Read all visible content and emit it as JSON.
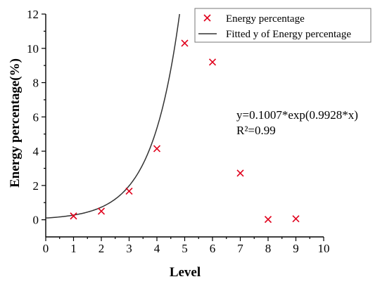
{
  "chart_data": {
    "type": "scatter",
    "xlabel": "Level",
    "ylabel": "Energy percentage(%)",
    "xlim": [
      0,
      10
    ],
    "ylim": [
      -1,
      12
    ],
    "x_ticks": [
      0,
      1,
      2,
      3,
      4,
      5,
      6,
      7,
      8,
      9,
      10
    ],
    "y_ticks": [
      0,
      2,
      4,
      6,
      8,
      10,
      12
    ],
    "grid": false,
    "legend_position": "top-right",
    "series": [
      {
        "name": "Energy percentage",
        "kind": "scatter",
        "marker": "x",
        "color": "#e0001b",
        "x": [
          1,
          2,
          3,
          4,
          5,
          6,
          7,
          8,
          9
        ],
        "y": [
          0.22,
          0.5,
          1.67,
          4.15,
          10.3,
          9.2,
          2.72,
          0.02,
          0.06
        ]
      },
      {
        "name": "Fitted y of Energy percentage",
        "kind": "line",
        "color": "#333333",
        "model": {
          "a": 0.1007,
          "b": 0.9928
        }
      }
    ],
    "annotations": [
      "y=0.1007*exp(0.9928*x)",
      "R²=0.99"
    ]
  }
}
